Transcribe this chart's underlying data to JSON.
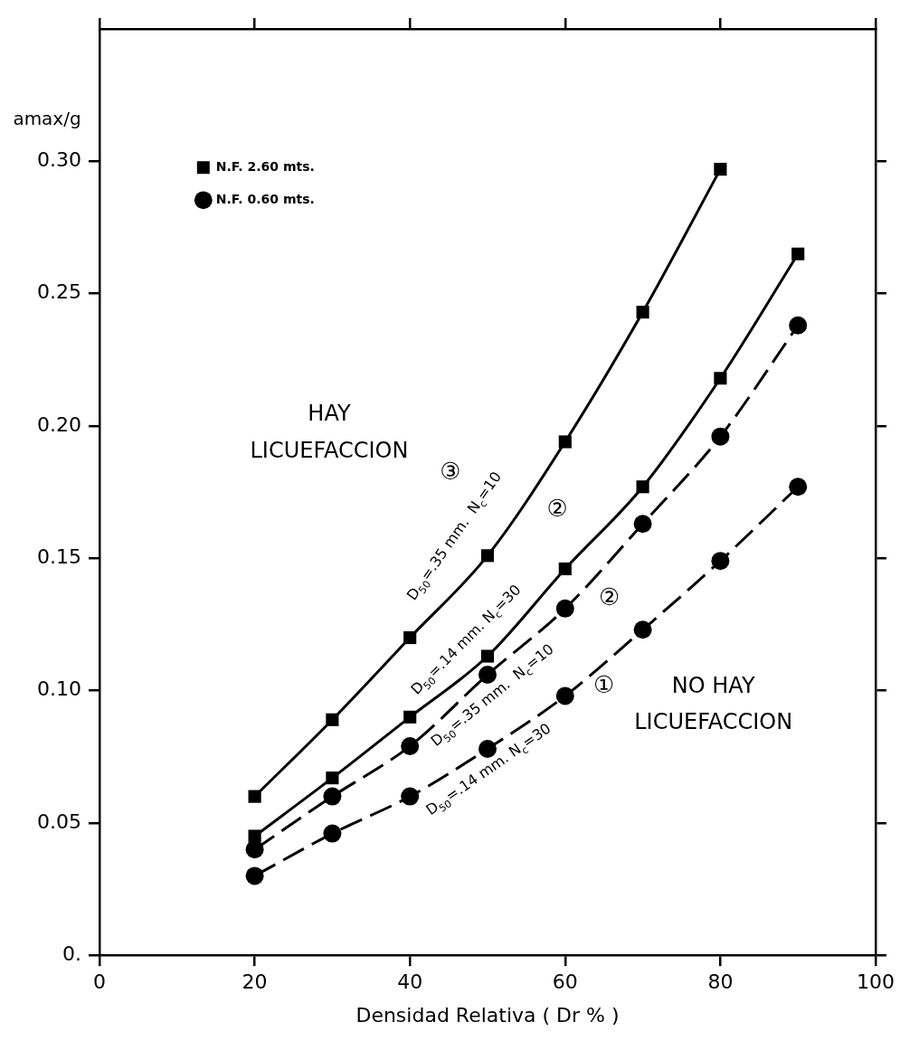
{
  "chart_data": {
    "type": "line",
    "xlabel": "Densidad Relativa ( Dr % )",
    "ylabel": "amax/g",
    "xlim": [
      0,
      100
    ],
    "xticks": [
      0,
      20,
      40,
      60,
      80,
      100
    ],
    "ylim": [
      0,
      0.35
    ],
    "yticks": [
      {
        "value": 0,
        "label": "0."
      },
      0.05,
      {
        "value": 0.1,
        "label": "0.10"
      },
      0.15,
      {
        "value": 0.2,
        "label": "0.20"
      },
      0.25,
      {
        "value": 0.3,
        "label": "0.30"
      }
    ],
    "grid": false,
    "legend": "top left",
    "series": [
      {
        "name": "N.F. 2.60 mts.",
        "color": "#000000",
        "marker": "square",
        "line_style": "solid",
        "x": [
          20,
          30,
          40,
          50,
          60,
          70,
          80
        ],
        "values": [
          0.06,
          0.089,
          0.12,
          0.151,
          0.194,
          0.243,
          0.297
        ]
      },
      {
        "color": "#000000",
        "marker": "square",
        "line_style": "solid",
        "x": [
          20,
          30,
          40,
          50,
          60,
          70,
          80,
          90
        ],
        "values": [
          0.045,
          0.067,
          0.09,
          0.113,
          0.146,
          0.177,
          0.218,
          0.265
        ]
      },
      {
        "name": "N.F. 0.60 mts.",
        "color": "#000000",
        "marker": "circle",
        "line_style": "dashed",
        "x": [
          20,
          30,
          40,
          50,
          60,
          70,
          80,
          90
        ],
        "values": [
          0.04,
          0.06,
          0.079,
          0.106,
          0.131,
          0.163,
          0.196,
          0.238
        ]
      },
      {
        "color": "#000000",
        "marker": "circle",
        "line_style": "dashed",
        "x": [
          20,
          30,
          40,
          50,
          60,
          70,
          80,
          90
        ],
        "values": [
          0.03,
          0.046,
          0.06,
          0.078,
          0.098,
          0.123,
          0.149,
          0.177
        ]
      }
    ],
    "annotations": [
      "D$_{50}$=.35 mm.  N$_{c}$=10",
      "D$_{50}$=.14 mm. N$_{c}$=30",
      "D$_{50}$=.35 mm.  N$_{c}$=10",
      "D$_{50}$=.14 mm. N$_{c}$=30",
      "③",
      "②",
      "②",
      "①",
      "HAY\nLICUEFACCION",
      "NO HAY\nLICUEFACCION"
    ]
  }
}
